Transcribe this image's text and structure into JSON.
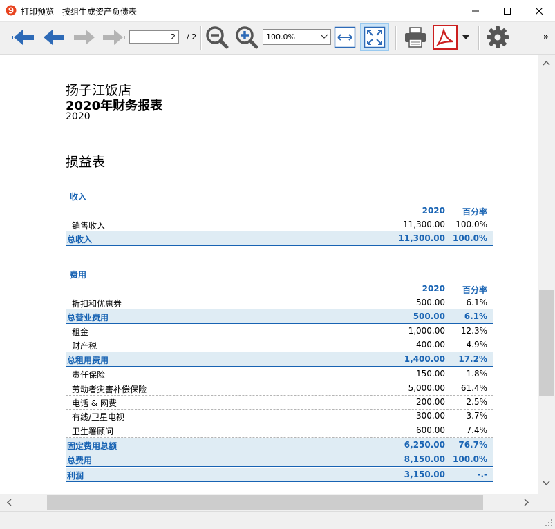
{
  "window": {
    "title": "打印预览 - 按组生成资产负债表"
  },
  "toolbar": {
    "page_current": "2",
    "page_total": "/ 2",
    "zoom": "100.0%",
    "more": "»"
  },
  "report": {
    "company": "扬子江饭店",
    "title": "2020年财务报表",
    "year": "2020",
    "section_title": "损益表",
    "col_year": "2020",
    "col_pct": "百分率",
    "income": {
      "title": "收入",
      "rows": [
        {
          "label": "销售收入",
          "amount": "11,300.00",
          "pct": "100.0%"
        }
      ],
      "total": {
        "label": "总收入",
        "amount": "11,300.00",
        "pct": "100.0%"
      }
    },
    "expenses": {
      "title": "费用",
      "operating_rows": [
        {
          "label": "折扣和优惠券",
          "amount": "500.00",
          "pct": "6.1%"
        }
      ],
      "operating_total": {
        "label": "总营业费用",
        "amount": "500.00",
        "pct": "6.1%"
      },
      "rent_rows": [
        {
          "label": "租金",
          "amount": "1,000.00",
          "pct": "12.3%"
        },
        {
          "label": "财产税",
          "amount": "400.00",
          "pct": "4.9%"
        }
      ],
      "rent_total": {
        "label": "总租用费用",
        "amount": "1,400.00",
        "pct": "17.2%"
      },
      "fixed_rows": [
        {
          "label": "责任保险",
          "amount": "150.00",
          "pct": "1.8%"
        },
        {
          "label": "劳动者灾害补偿保险",
          "amount": "5,000.00",
          "pct": "61.4%"
        },
        {
          "label": "电话 & 网费",
          "amount": "200.00",
          "pct": "2.5%"
        },
        {
          "label": "有线/卫星电视",
          "amount": "300.00",
          "pct": "3.7%"
        },
        {
          "label": "卫生署顾问",
          "amount": "600.00",
          "pct": "7.4%"
        }
      ],
      "fixed_total": {
        "label": "固定费用总额",
        "amount": "6,250.00",
        "pct": "76.7%"
      },
      "grand_total": {
        "label": "总费用",
        "amount": "8,150.00",
        "pct": "100.0%"
      }
    },
    "profit": {
      "label": "利润",
      "amount": "3,150.00",
      "pct": "-.-"
    }
  }
}
